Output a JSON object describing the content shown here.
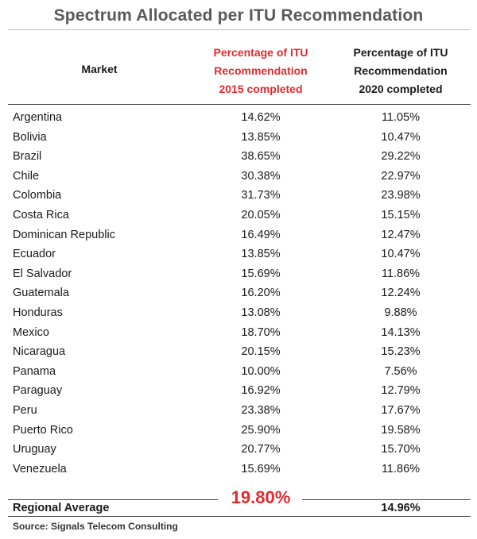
{
  "chart_data": {
    "type": "table",
    "title": "Spectrum Allocated per ITU Recommendation",
    "columns": [
      "Market",
      "Percentage of ITU Recommendation 2015 completed",
      "Percentage of ITU Recommendation 2020 completed"
    ],
    "header": {
      "market": "Market",
      "c2015_lines": [
        "Percentage of ITU",
        "Recommendation",
        "2015 completed"
      ],
      "c2020_lines": [
        "Percentage of ITU",
        "Recommendation",
        "2020 completed"
      ]
    },
    "rows": [
      {
        "market": "Argentina",
        "p2015": "14.62%",
        "p2020": "11.05%"
      },
      {
        "market": "Bolivia",
        "p2015": "13.85%",
        "p2020": "10.47%"
      },
      {
        "market": "Brazil",
        "p2015": "38.65%",
        "p2020": "29.22%"
      },
      {
        "market": "Chile",
        "p2015": "30.38%",
        "p2020": "22.97%"
      },
      {
        "market": "Colombia",
        "p2015": "31.73%",
        "p2020": "23.98%"
      },
      {
        "market": "Costa Rica",
        "p2015": "20.05%",
        "p2020": "15.15%"
      },
      {
        "market": "Dominican Republic",
        "p2015": "16.49%",
        "p2020": "12.47%"
      },
      {
        "market": "Ecuador",
        "p2015": "13.85%",
        "p2020": "10.47%"
      },
      {
        "market": "El Salvador",
        "p2015": "15.69%",
        "p2020": "11.86%"
      },
      {
        "market": "Guatemala",
        "p2015": "16.20%",
        "p2020": "12.24%"
      },
      {
        "market": "Honduras",
        "p2015": "13.08%",
        "p2020": "9.88%"
      },
      {
        "market": "Mexico",
        "p2015": "18.70%",
        "p2020": "14.13%"
      },
      {
        "market": "Nicaragua",
        "p2015": "20.15%",
        "p2020": "15.23%"
      },
      {
        "market": "Panama",
        "p2015": "10.00%",
        "p2020": "7.56%"
      },
      {
        "market": "Paraguay",
        "p2015": "16.92%",
        "p2020": "12.79%"
      },
      {
        "market": "Peru",
        "p2015": "23.38%",
        "p2020": "17.67%"
      },
      {
        "market": "Puerto Rico",
        "p2015": "25.90%",
        "p2020": "19.58%"
      },
      {
        "market": "Uruguay",
        "p2015": "20.77%",
        "p2020": "15.70%"
      },
      {
        "market": "Venezuela",
        "p2015": "15.69%",
        "p2020": "11.86%"
      }
    ],
    "average": {
      "label": "Regional Average",
      "p2015": "19.80%",
      "p2020": "14.96%"
    },
    "source": "Source: Signals Telecom Consulting",
    "colors": {
      "highlight": "#e8282b",
      "title": "#5a5a5a"
    }
  }
}
